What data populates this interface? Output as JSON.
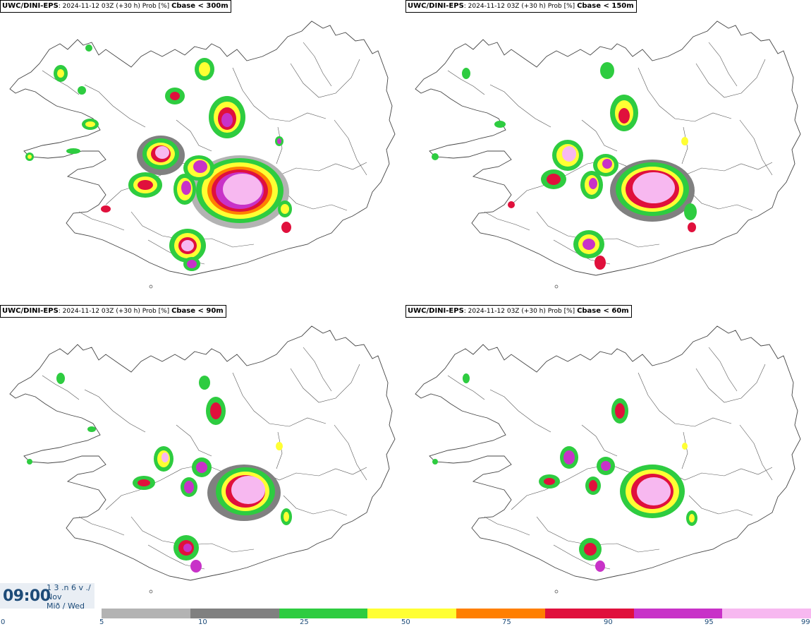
{
  "panels": [
    {
      "model": "UWC/DINI-EPS",
      "info": "2024-11-12 03Z (+30 h) Prob [%]",
      "variable": "Cbase < 300m"
    },
    {
      "model": "UWC/DINI-EPS",
      "info": "2024-11-12 03Z (+30 h) Prob [%]",
      "variable": "Cbase < 150m"
    },
    {
      "model": "UWC/DINI-EPS",
      "info": "2024-11-12 03Z (+30 h) Prob [%]",
      "variable": "Cbase < 90m"
    },
    {
      "model": "UWC/DINI-EPS",
      "info": "2024-11-12 03Z (+30 h) Prob [%]",
      "variable": "Cbase < 60m"
    }
  ],
  "valid_time": {
    "time": "09:00",
    "date_line1": "1 3 .n 6 v ./",
    "date_line2": "Nov",
    "date_line3": "Mið / Wed"
  },
  "legend": {
    "ticks": [
      "0",
      "5",
      "10",
      "25",
      "50",
      "75",
      "90",
      "95",
      "99"
    ],
    "colors": [
      "#b3b3b3",
      "#808080",
      "#2ecc40",
      "#ffff33",
      "#ff7f00",
      "#e0103c",
      "#c832c8",
      "#f7b8f0"
    ]
  }
}
